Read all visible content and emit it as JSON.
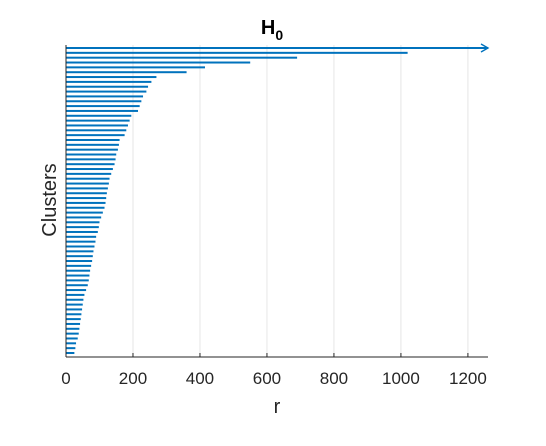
{
  "chart_data": {
    "type": "bar",
    "orientation": "horizontal",
    "title": "H",
    "title_subscript": "0",
    "xlabel": "r",
    "ylabel": "Clusters",
    "xlim": [
      0,
      1260
    ],
    "xticks": [
      "0",
      "200",
      "400",
      "600",
      "800",
      "1000",
      "1200"
    ],
    "xtick_values": [
      0,
      200,
      400,
      600,
      800,
      1000,
      1200
    ],
    "grid": "vertical",
    "infinite_bar_arrow": true,
    "bar_color": "#0072BD",
    "values": [
      1260,
      1020,
      690,
      550,
      415,
      360,
      270,
      255,
      245,
      240,
      230,
      225,
      220,
      215,
      195,
      190,
      185,
      180,
      175,
      160,
      158,
      155,
      150,
      148,
      145,
      140,
      135,
      130,
      128,
      125,
      122,
      120,
      118,
      115,
      110,
      105,
      100,
      98,
      95,
      90,
      88,
      85,
      82,
      80,
      78,
      75,
      72,
      70,
      68,
      65,
      60,
      55,
      52,
      50,
      48,
      46,
      44,
      42,
      40,
      38,
      35,
      30,
      28,
      25
    ]
  }
}
